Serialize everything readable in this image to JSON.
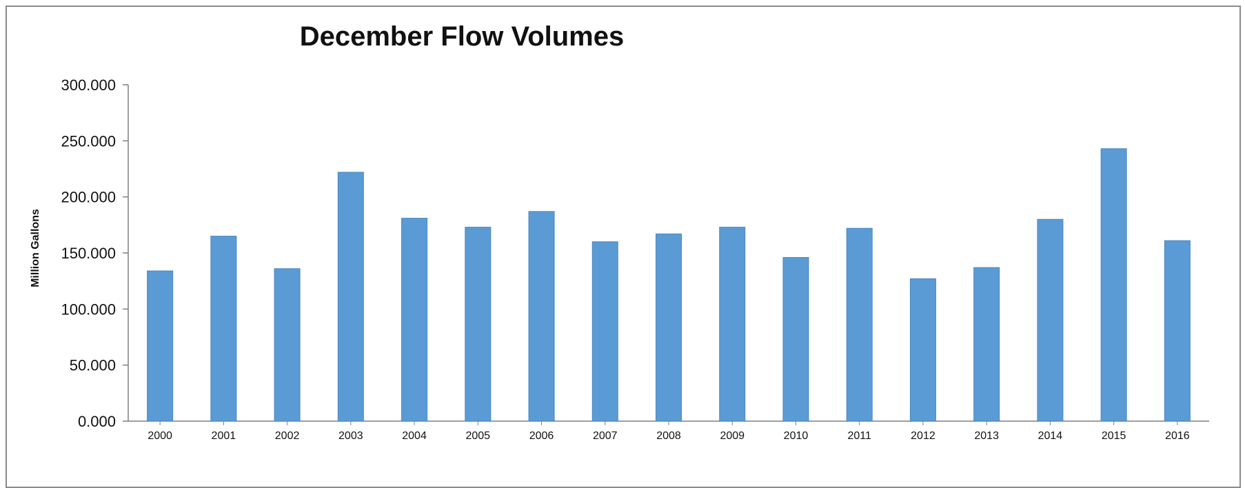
{
  "chart_data": {
    "type": "bar",
    "title": "December Flow Volumes",
    "xlabel": "",
    "ylabel": "Million Gallons",
    "categories": [
      "2000",
      "2001",
      "2002",
      "2003",
      "2004",
      "2005",
      "2006",
      "2007",
      "2008",
      "2009",
      "2010",
      "2011",
      "2012",
      "2013",
      "2014",
      "2015",
      "2016"
    ],
    "values": [
      134,
      165,
      136,
      222,
      181,
      173,
      187,
      160,
      167,
      173,
      146,
      172,
      127,
      137,
      180,
      243,
      161
    ],
    "ylim": [
      0,
      300
    ],
    "yticks": [
      "0.000",
      "50.000",
      "100.000",
      "150.000",
      "200.000",
      "250.000",
      "300.000"
    ],
    "bar_color": "#5b9bd5",
    "grid": false,
    "legend": "none"
  }
}
